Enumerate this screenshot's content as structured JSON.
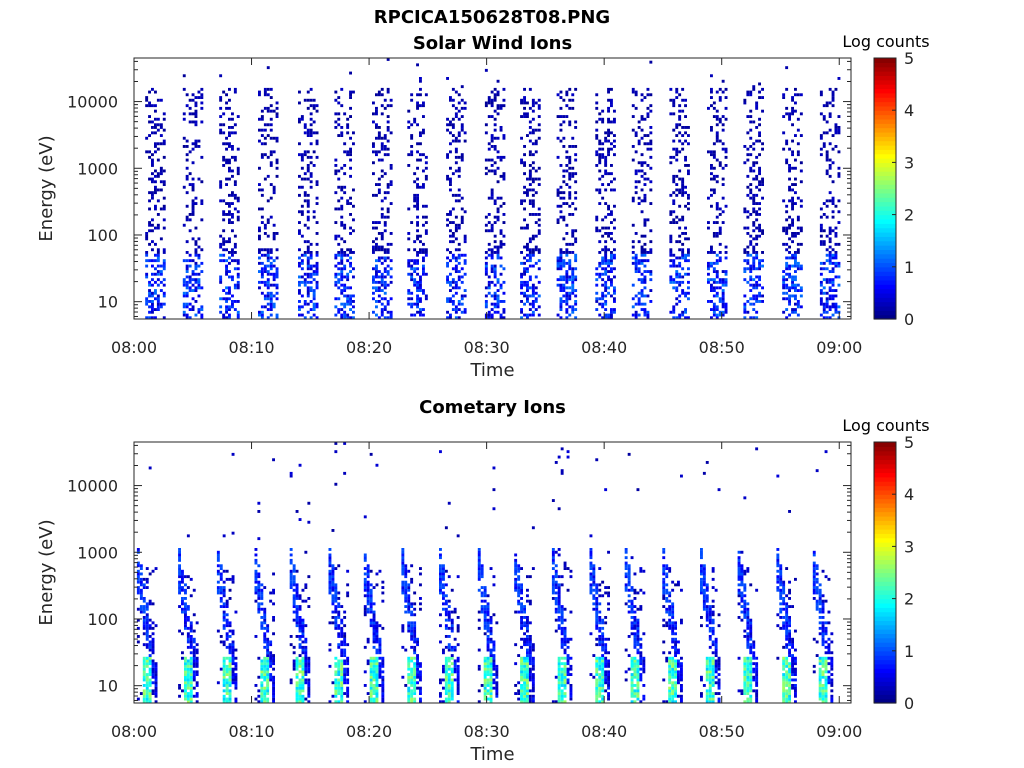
{
  "figure": {
    "filename": "RPCICA150628T08.PNG"
  },
  "chart_data": [
    {
      "type": "heatmap",
      "title": "Solar Wind Ions",
      "xlabel": "Time",
      "ylabel": "Energy (eV)",
      "x_ticks": [
        "08:00",
        "08:10",
        "08:20",
        "08:30",
        "08:40",
        "08:50",
        "09:00"
      ],
      "x_range": [
        "08:00",
        "09:01"
      ],
      "y_scale": "log",
      "y_ticks": [
        "10",
        "100",
        "1000",
        "10000"
      ],
      "y_range": [
        5.5,
        45000
      ],
      "colorbar": {
        "label": "Log counts",
        "range": [
          0,
          5
        ],
        "ticks": [
          "0",
          "1",
          "2",
          "3",
          "4",
          "5"
        ],
        "colormap": "jet"
      },
      "sweep_times_min": [
        1.7,
        4.9,
        8.0,
        11.3,
        14.7,
        17.8,
        21.0,
        24.0,
        27.3,
        30.6,
        33.6,
        36.7,
        40.0,
        43.1,
        46.3,
        49.5,
        52.6,
        55.9,
        59.1
      ],
      "energy_range_ev": [
        6,
        15000
      ],
      "max_log_counts": 2
    },
    {
      "type": "heatmap",
      "title": "Cometary Ions",
      "xlabel": "Time",
      "ylabel": "Energy (eV)",
      "x_ticks": [
        "08:00",
        "08:10",
        "08:20",
        "08:30",
        "08:40",
        "08:50",
        "09:00"
      ],
      "x_range": [
        "08:00",
        "09:01"
      ],
      "y_scale": "log",
      "y_ticks": [
        "10",
        "100",
        "1000",
        "10000"
      ],
      "y_range": [
        5.5,
        45000
      ],
      "colorbar": {
        "label": "Log counts",
        "range": [
          0,
          5
        ],
        "ticks": [
          "0",
          "1",
          "2",
          "3",
          "4",
          "5"
        ],
        "colormap": "jet"
      },
      "sweep_times_min": [
        1.0,
        4.5,
        7.8,
        11.0,
        14.0,
        17.3,
        20.3,
        23.5,
        26.7,
        30.0,
        33.1,
        36.3,
        39.5,
        42.5,
        45.7,
        48.9,
        52.1,
        55.4,
        58.5
      ],
      "energy_range_ev": [
        6,
        600
      ],
      "max_log_counts": 2.8
    }
  ]
}
